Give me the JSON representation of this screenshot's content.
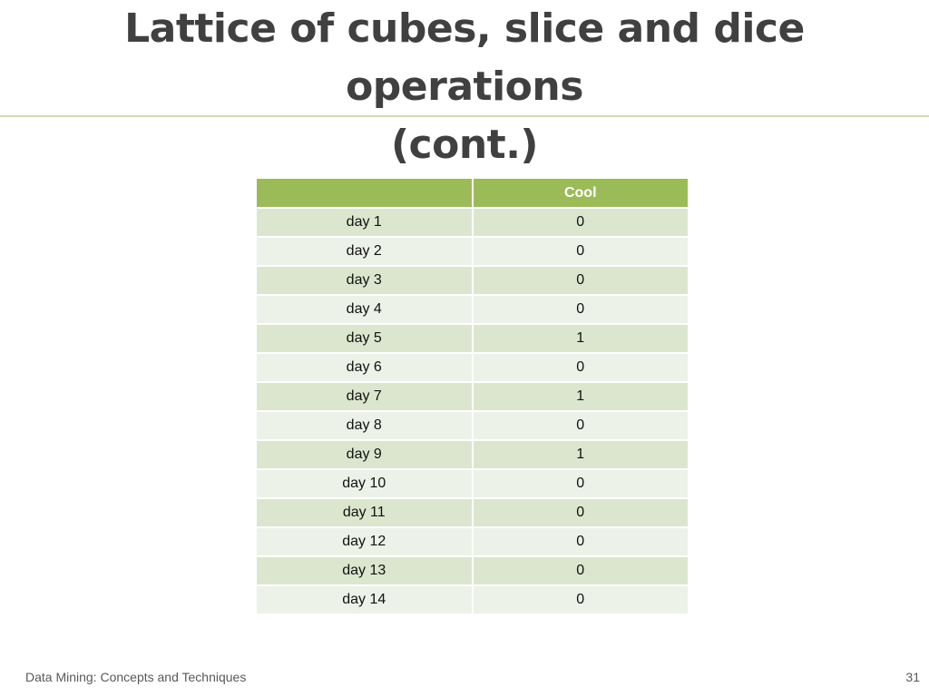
{
  "slide": {
    "title_line1": "Lattice of cubes, slice and dice operations",
    "title_line2": "(cont.)",
    "footer_text": "Data Mining: Concepts and Techniques",
    "page_number": "31"
  },
  "table": {
    "headers": [
      "",
      "Cool"
    ],
    "rows": [
      {
        "day": "day 1",
        "value": "0"
      },
      {
        "day": "day 2",
        "value": "0"
      },
      {
        "day": "day 3",
        "value": "0"
      },
      {
        "day": "day 4",
        "value": "0"
      },
      {
        "day": "day 5",
        "value": "1"
      },
      {
        "day": "day 6",
        "value": "0"
      },
      {
        "day": "day 7",
        "value": "1"
      },
      {
        "day": "day 8",
        "value": "0"
      },
      {
        "day": "day 9",
        "value": "1"
      },
      {
        "day": "day 10",
        "value": "0"
      },
      {
        "day": "day 11",
        "value": "0"
      },
      {
        "day": "day 12",
        "value": "0"
      },
      {
        "day": "day 13",
        "value": "0"
      },
      {
        "day": "day 14",
        "value": "0"
      }
    ]
  },
  "colors": {
    "header": "#9bbb59",
    "row_odd": "#dce6cf",
    "row_even": "#edf2e8",
    "title": "#404040",
    "rule": "#cfd9b3"
  }
}
